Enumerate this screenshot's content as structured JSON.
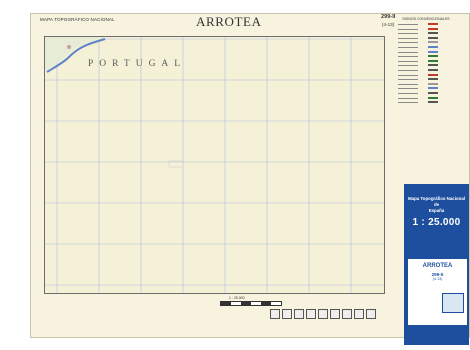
{
  "header": {
    "series_title": "MAPA TOPOGRÁFICO NACIONAL",
    "sheet_name": "ARROTEA",
    "sheet_number": "299-II",
    "sheet_code": "(4-13)"
  },
  "map": {
    "country_label": "PORTUGAL",
    "scale_label": "1 : 25.000",
    "colors": {
      "paper": "#f4f1d7",
      "grid": "#a9bfe0",
      "river": "#5f83c9",
      "border": "#6d6d6d"
    }
  },
  "legend": {
    "title": "SIGNOS CONVENCIONALES"
  },
  "panel": {
    "heading_line1": "Mapa Topográfico Nacional",
    "heading_line2": "de",
    "heading_line3": "España",
    "scale": "1 : 25.000",
    "sheet_name": "ARROTEA",
    "sheet_number": "299-II",
    "sheet_code": "(4-13)",
    "color": "#1e4f9e"
  }
}
